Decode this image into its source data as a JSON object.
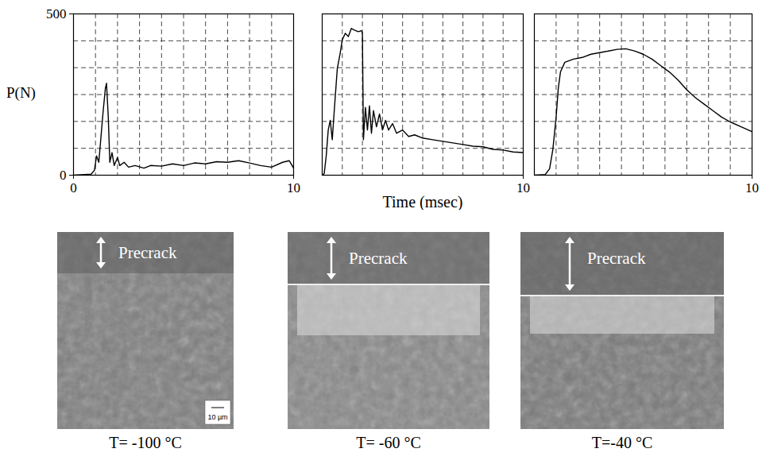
{
  "chart_data": [
    {
      "type": "line",
      "ylabel": "P(N)",
      "color": "#000000",
      "grid": true,
      "xlim": [
        0,
        10
      ],
      "ylim": [
        0,
        500
      ],
      "xticks": [
        0,
        10
      ],
      "yticks": [
        0,
        500
      ],
      "x": [
        0,
        0.5,
        0.8,
        0.95,
        1.05,
        1.15,
        1.25,
        1.35,
        1.45,
        1.5,
        1.58,
        1.65,
        1.75,
        1.85,
        2.0,
        2.1,
        2.3,
        2.5,
        2.8,
        3.2,
        3.5,
        4.0,
        4.5,
        5.0,
        5.5,
        6.0,
        6.5,
        7.0,
        7.5,
        8.0,
        8.5,
        9.0,
        9.5,
        9.8,
        10
      ],
      "values": [
        0,
        2,
        3,
        15,
        60,
        40,
        120,
        200,
        270,
        285,
        180,
        40,
        70,
        30,
        55,
        30,
        40,
        25,
        30,
        22,
        30,
        28,
        35,
        30,
        38,
        35,
        42,
        40,
        45,
        38,
        30,
        25,
        40,
        45,
        22
      ]
    },
    {
      "type": "line",
      "xlabel": "Time (msec)",
      "color": "#000000",
      "grid": true,
      "tick_labels": "x",
      "xlim": [
        0,
        10
      ],
      "ylim": [
        0,
        500
      ],
      "xticks": [
        10
      ],
      "x": [
        0,
        0.1,
        0.2,
        0.3,
        0.4,
        0.5,
        0.6,
        0.75,
        0.9,
        1.0,
        1.15,
        1.3,
        1.45,
        1.6,
        1.8,
        1.95,
        2.0,
        2.05,
        2.15,
        2.25,
        2.35,
        2.45,
        2.55,
        2.7,
        2.85,
        3.0,
        3.15,
        3.3,
        3.5,
        3.7,
        4.0,
        4.3,
        4.6,
        5.0,
        5.5,
        6.0,
        6.5,
        7.0,
        7.5,
        8.0,
        8.5,
        9.0,
        9.5,
        10
      ],
      "values": [
        0,
        5,
        60,
        140,
        170,
        110,
        200,
        330,
        380,
        420,
        440,
        430,
        455,
        450,
        445,
        448,
        440,
        110,
        210,
        140,
        215,
        130,
        200,
        150,
        190,
        140,
        170,
        140,
        160,
        130,
        140,
        120,
        125,
        115,
        110,
        105,
        100,
        95,
        90,
        88,
        80,
        78,
        72,
        70
      ]
    },
    {
      "type": "line",
      "color": "#000000",
      "grid": true,
      "tick_labels": "x",
      "xlim": [
        0,
        10
      ],
      "ylim": [
        0,
        500
      ],
      "xticks": [
        10
      ],
      "x": [
        0,
        0.5,
        0.7,
        0.85,
        1.0,
        1.1,
        1.2,
        1.4,
        1.8,
        2.2,
        2.6,
        3.0,
        3.4,
        3.8,
        4.2,
        4.6,
        5.0,
        5.4,
        5.8,
        6.2,
        6.6,
        7.0,
        7.4,
        7.8,
        8.2,
        8.6,
        9.0,
        9.5,
        10
      ],
      "values": [
        0,
        2,
        20,
        80,
        180,
        270,
        320,
        350,
        360,
        365,
        375,
        380,
        385,
        390,
        392,
        385,
        375,
        360,
        340,
        320,
        295,
        265,
        240,
        220,
        200,
        180,
        165,
        150,
        135
      ]
    }
  ],
  "fractographs": [
    {
      "label": "Precrack",
      "scale_bar": "10 µm",
      "caption": "T= -100 °C"
    },
    {
      "label": "Precrack",
      "caption": "T= -60 °C"
    },
    {
      "label": "Precrack",
      "caption": "T=-40 °C"
    }
  ]
}
